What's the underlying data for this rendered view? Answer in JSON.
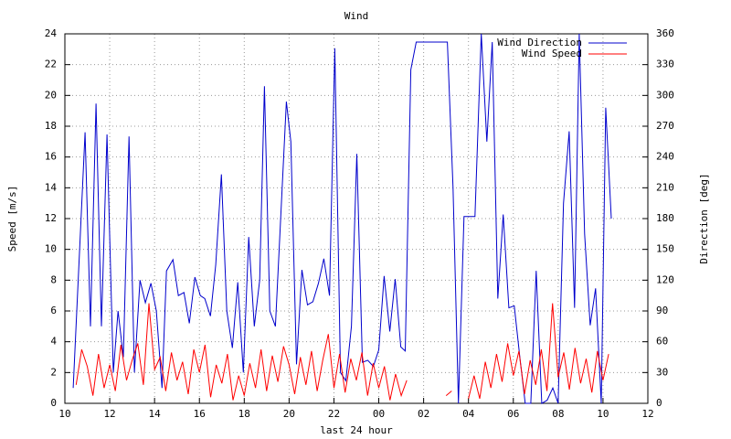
{
  "chart_data": {
    "type": "line",
    "title": "Wind",
    "xlabel": "last 24 hour",
    "ylabel": "Speed [m/s]",
    "y2label": "Direction [deg]",
    "xlim": [
      10,
      36
    ],
    "xticks": [
      10,
      12,
      14,
      16,
      18,
      20,
      22,
      {
        "value": 24,
        "label": "00"
      },
      {
        "value": 26,
        "label": "02"
      },
      {
        "value": 28,
        "label": "04"
      },
      {
        "value": 30,
        "label": "06"
      },
      {
        "value": 32,
        "label": "08"
      },
      {
        "value": 34,
        "label": "10"
      },
      {
        "value": 36,
        "label": "12"
      }
    ],
    "ylim": [
      0,
      24
    ],
    "yticks": [
      0,
      2,
      4,
      6,
      8,
      10,
      12,
      14,
      16,
      18,
      20,
      22,
      24
    ],
    "y2lim": [
      0,
      360
    ],
    "y2ticks": [
      0,
      30,
      60,
      90,
      120,
      150,
      180,
      210,
      240,
      270,
      300,
      330,
      360
    ],
    "grid": true,
    "legend": "top right",
    "series": [
      {
        "name": "Wind Direction",
        "color": "#0000cc",
        "axis": "y2",
        "x": [
          10.37,
          10.9,
          11.14,
          11.39,
          11.63,
          11.88,
          12.16,
          12.37,
          12.61,
          12.86,
          13.1,
          13.35,
          13.59,
          13.84,
          14.08,
          14.33,
          14.53,
          14.82,
          15.06,
          15.31,
          15.55,
          15.8,
          16.04,
          16.24,
          16.49,
          16.73,
          16.98,
          17.22,
          17.47,
          17.71,
          17.96,
          18.2,
          18.45,
          18.69,
          18.9,
          19.14,
          19.39,
          19.88,
          20.08,
          20.33,
          20.57,
          20.82,
          21.06,
          21.31,
          21.55,
          21.8,
          22.04,
          22.29,
          22.53,
          22.78,
          23.02,
          23.27,
          23.51,
          23.76,
          24.0,
          24.24,
          24.49,
          24.73,
          24.98,
          25.18,
          25.43,
          25.67,
          27.06,
          27.31,
          27.55,
          27.8,
          28.29,
          28.57,
          28.82,
          29.06,
          29.31,
          29.55,
          29.8,
          30.04,
          30.29,
          30.53,
          30.78,
          31.02,
          31.27,
          31.51,
          31.76,
          32.0,
          32.24,
          32.49,
          32.73,
          32.94,
          33.18,
          33.43,
          33.67,
          33.92,
          34.12,
          34.37
        ],
        "values": [
          15,
          264,
          75,
          292,
          75,
          262,
          30,
          90,
          45,
          260,
          30,
          120,
          98,
          117,
          90,
          15,
          129,
          140,
          105,
          108,
          78,
          123,
          105,
          102,
          85,
          135,
          223,
          90,
          54,
          118,
          30,
          162,
          75,
          120,
          309,
          90,
          75,
          294,
          255,
          38,
          130,
          96,
          99,
          117,
          141,
          105,
          346,
          30,
          22,
          75,
          243,
          40,
          42,
          36,
          52,
          124,
          70,
          121,
          55,
          51,
          325,
          352,
          352,
          210,
          0,
          182,
          182,
          360,
          255,
          352,
          102,
          184,
          93,
          95,
          45,
          0,
          0,
          129,
          0,
          3,
          15,
          0,
          195,
          265,
          93,
          360,
          165,
          76,
          112,
          0,
          288,
          180
        ]
      },
      {
        "name": "Wind Speed",
        "color": "#ff0000",
        "x": [
          10.5,
          10.75,
          11,
          11.25,
          11.5,
          11.75,
          12,
          12.25,
          12.5,
          12.75,
          13,
          13.25,
          13.5,
          13.75,
          14,
          14.25,
          14.5,
          14.75,
          15,
          15.25,
          15.5,
          15.75,
          16,
          16.25,
          16.5,
          16.75,
          17,
          17.25,
          17.5,
          17.75,
          18,
          18.25,
          18.5,
          18.75,
          19,
          19.25,
          19.5,
          19.75,
          20,
          20.25,
          20.5,
          20.75,
          21,
          21.25,
          21.5,
          21.75,
          22,
          22.25,
          22.5,
          22.75,
          23,
          23.25,
          23.5,
          23.75,
          24,
          24.25,
          24.5,
          24.75,
          25,
          25.25,
          25.5,
          25.75,
          26,
          26.25,
          26.5,
          26.75,
          27,
          27.25,
          27.5,
          27.75,
          28,
          28.25,
          28.5,
          28.75,
          29,
          29.25,
          29.5,
          29.75,
          30,
          30.25,
          30.5,
          30.75,
          31,
          31.25,
          31.5,
          31.75,
          32,
          32.25,
          32.5,
          32.75,
          33,
          33.25,
          33.5,
          33.75,
          34,
          34.25
        ],
        "values": [
          1.2,
          3.5,
          2.4,
          0.5,
          3.2,
          1,
          2.5,
          0.8,
          3.8,
          1.5,
          2.8,
          3.9,
          1.2,
          6.5,
          2.2,
          3,
          0.8,
          3.3,
          1.5,
          2.7,
          0.6,
          3.5,
          2,
          3.8,
          0.4,
          2.5,
          1.3,
          3.2,
          0.2,
          1.8,
          0.5,
          2.6,
          1,
          3.5,
          0.8,
          3.1,
          1.4,
          3.7,
          2.5,
          0.6,
          3,
          1.2,
          3.4,
          0.8,
          2.8,
          4.5,
          1,
          3.2,
          0.7,
          2.9,
          1.5,
          3.3,
          0.5,
          2.6,
          1,
          2.4,
          0.2,
          1.9,
          0.5,
          1.5,
          null,
          null,
          null,
          null,
          null,
          null,
          0.5,
          0.8,
          null,
          null,
          0.3,
          1.8,
          0.3,
          2.7,
          1,
          3.2,
          1.4,
          3.9,
          1.8,
          3.4,
          0.6,
          2.8,
          1.2,
          3.5,
          0.8,
          6.5,
          1.7,
          3.3,
          0.9,
          3.6,
          1.3,
          2.9,
          0.7,
          3.4,
          1.5,
          3.2
        ]
      }
    ]
  }
}
